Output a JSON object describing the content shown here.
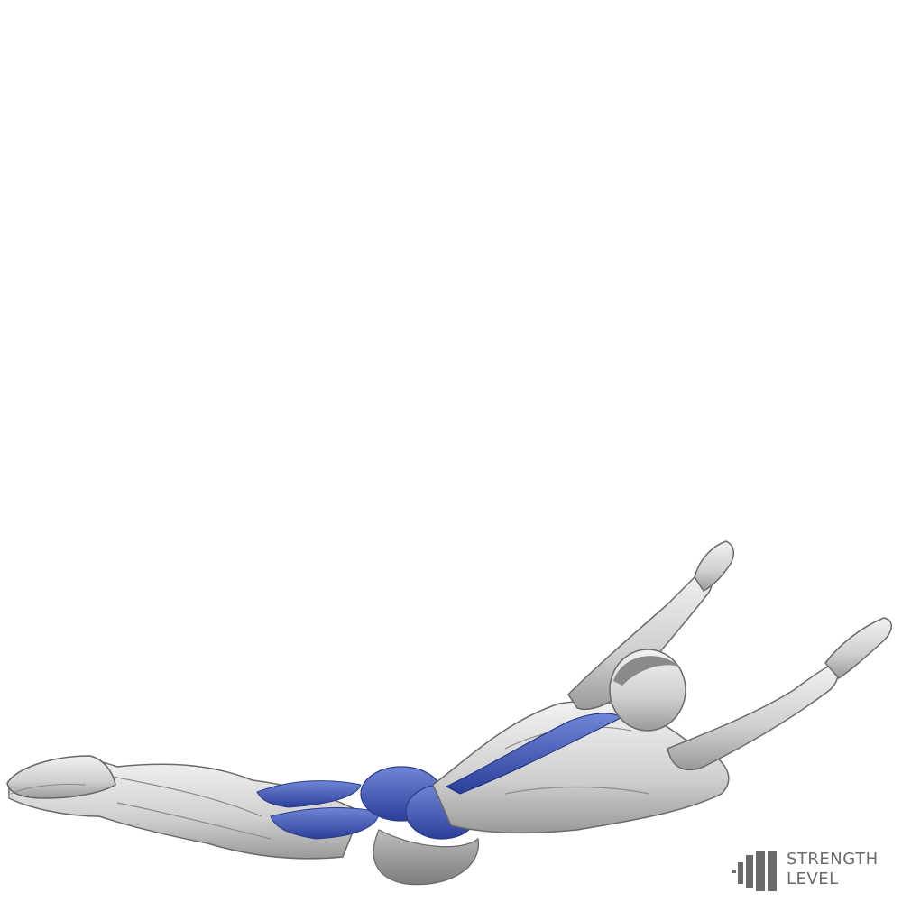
{
  "brand": {
    "line1": "STRENGTH",
    "line2": "LEVEL",
    "text_color": "#6b6b6b"
  },
  "illustration": {
    "subject": "superman-exercise-figure",
    "highlight_color": "#3d55b8",
    "body_color": "#d9d9d9"
  }
}
